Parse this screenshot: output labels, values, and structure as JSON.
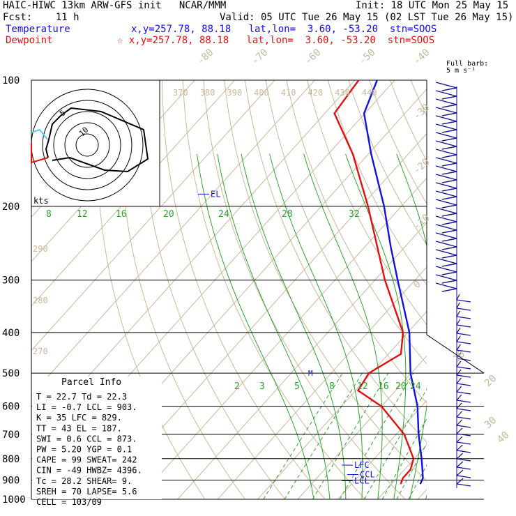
{
  "header": {
    "title": "HAIC-HIWC 13km ARW-GFS init   NCAR/MMM",
    "init": "Init: 18 UTC Mon 25 May 15",
    "fcst": "Fcst:    11 h",
    "valid": "Valid: 05 UTC Tue 26 May 15 (02 LST Tue 26 May 15)",
    "temp_label": "Temperature",
    "temp_info": "x,y=257.78, 88.18   lat,lon=  3.60, -53.20  stn=SOOS",
    "dew_label": "Dewpoint",
    "dew_info": "☆ x,y=257.78, 88.18   lat,lon=  3.60, -53.20  stn=SOOS"
  },
  "colors": {
    "temperature": "#1010e0",
    "dewpoint": "#e01010",
    "isotherm": "#c8b89a",
    "mixing_ratio": "#30a030",
    "barb": "#10108a"
  },
  "chart_data": {
    "type": "line",
    "title": "",
    "y_scale": "log pressure (hPa)",
    "pressure_levels": [
      100,
      200,
      300,
      400,
      500,
      600,
      700,
      800,
      900,
      1000
    ],
    "isotherm_labels": [
      -80,
      -70,
      -60,
      -50,
      -40,
      -30,
      -20,
      -10,
      0,
      10,
      20,
      30,
      40
    ],
    "theta_labels": [
      370,
      380,
      390,
      400,
      410,
      420,
      430,
      440
    ],
    "theta_left_labels": [
      290,
      280,
      270
    ],
    "mixing_ratio_labels_upper": [
      8,
      12,
      16,
      20,
      24,
      28,
      32
    ],
    "mixing_ratio_labels_lower": [
      2,
      3,
      5,
      8,
      12,
      16,
      20,
      24
    ],
    "series": [
      {
        "name": "Temperature",
        "points": [
          [
            920,
            27.2
          ],
          [
            890,
            26.5
          ],
          [
            850,
            24.5
          ],
          [
            800,
            21.8
          ],
          [
            700,
            15.6
          ],
          [
            600,
            9.0
          ],
          [
            500,
            -0.2
          ],
          [
            400,
            -9.6
          ],
          [
            300,
            -24.3
          ],
          [
            250,
            -33.5
          ],
          [
            200,
            -44.3
          ],
          [
            150,
            -59.3
          ],
          [
            120,
            -70.2
          ],
          [
            100,
            -74.4
          ]
        ]
      },
      {
        "name": "Dewpoint",
        "points": [
          [
            920,
            22.3
          ],
          [
            890,
            21.5
          ],
          [
            850,
            21.5
          ],
          [
            800,
            19.8
          ],
          [
            700,
            12.0
          ],
          [
            600,
            0.0
          ],
          [
            550,
            -9.4
          ],
          [
            500,
            -10.6
          ],
          [
            450,
            -6.9
          ],
          [
            400,
            -11.2
          ],
          [
            300,
            -27.5
          ],
          [
            200,
            -48.3
          ],
          [
            150,
            -63.9
          ],
          [
            120,
            -77.6
          ],
          [
            100,
            -79.0
          ]
        ]
      }
    ],
    "levels_marked": [
      "EL",
      "LFC",
      "CCL",
      "LCL"
    ],
    "wind_barb_label": "Full barb:\n5 m s⁻¹",
    "hodograph": {
      "unit_label": "kts",
      "ring_labels": [
        "5",
        "10"
      ]
    }
  },
  "parcel": {
    "title": "Parcel Info",
    "rows": [
      "T   =    22.7  Td =  22.3",
      "LI  =    -0.7  LCL =  903.",
      "K   =      35  LFC =  829.",
      "TT  =      43  EL  =  187.",
      "SWI =     0.6  CCL =  873.",
      "PW  =    5.20  YGP =   0.1",
      "CAPE =     99  SWEAT=  242",
      "CIN  =    -49  HWBZ= 4396.",
      "Tc  =    28.2  SHEAR=   9.",
      "SREH =     70  LAPSE=  5.6",
      "CELL = 103/09"
    ]
  }
}
